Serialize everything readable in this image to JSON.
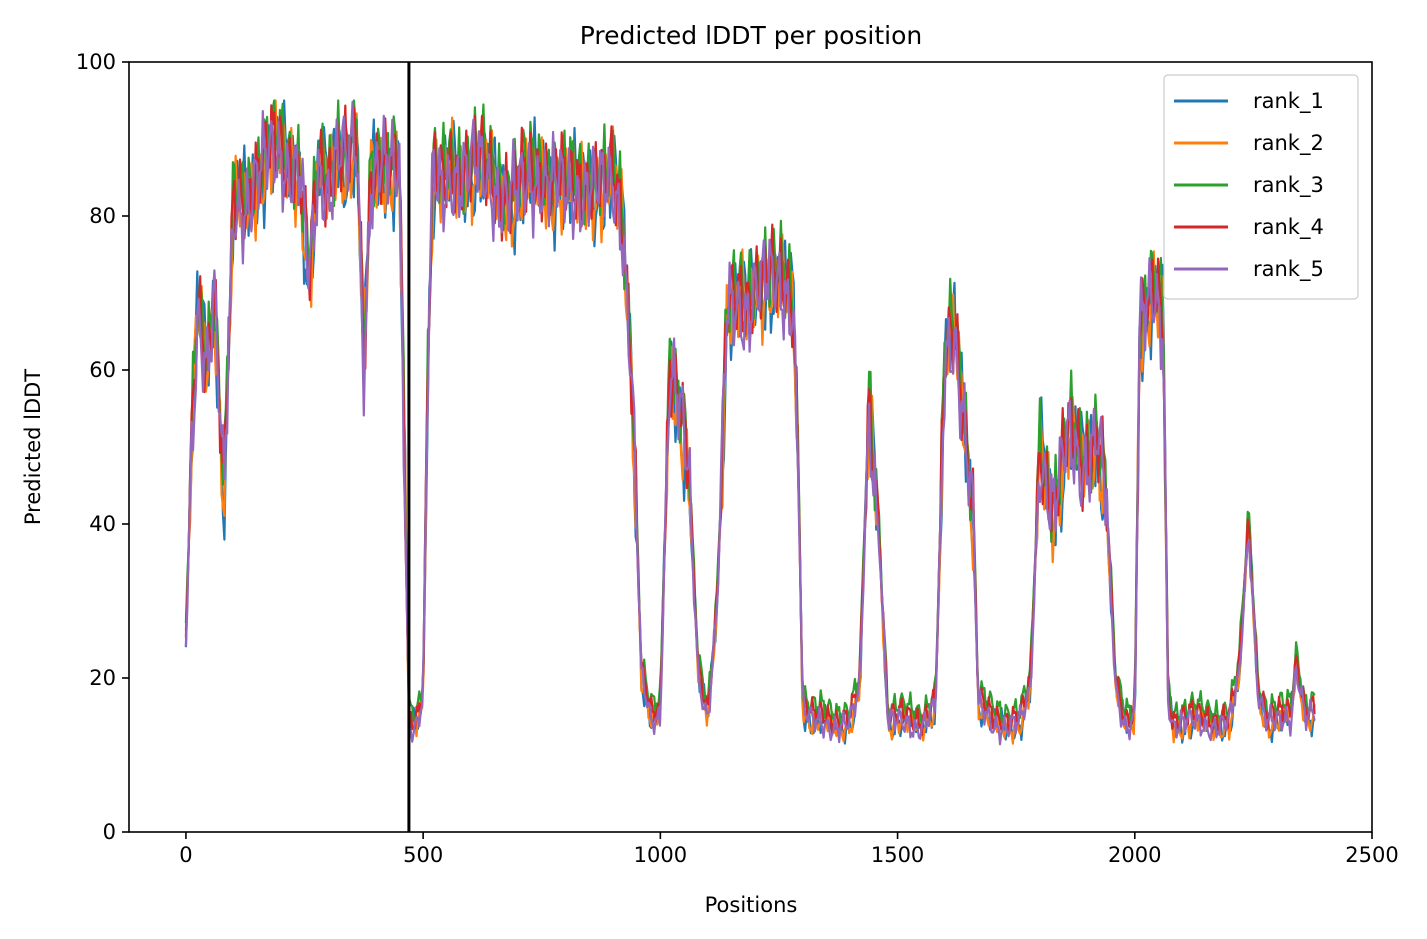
{
  "chart_data": {
    "type": "line",
    "title": "Predicted lDDT per position",
    "xlabel": "Positions",
    "ylabel": "Predicted lDDT",
    "xlim": [
      -120,
      2500
    ],
    "ylim": [
      0,
      100
    ],
    "xticks": [
      0,
      500,
      1000,
      1500,
      2000,
      2500
    ],
    "yticks": [
      0,
      20,
      40,
      60,
      80,
      100
    ],
    "legend_position": "top-right",
    "grid": false,
    "chain_break_x": 470,
    "chain_break_color": "#000000",
    "series": [
      {
        "name": "rank_1",
        "color": "#1f77b4",
        "offset": 0,
        "phase": 0.0
      },
      {
        "name": "rank_2",
        "color": "#ff7f0e",
        "offset": 0,
        "phase": 1.1
      },
      {
        "name": "rank_3",
        "color": "#2ca02c",
        "offset": 2,
        "phase": 2.3
      },
      {
        "name": "rank_4",
        "color": "#d62728",
        "offset": 1,
        "phase": 3.1
      },
      {
        "name": "rank_5",
        "color": "#9467bd",
        "offset": 0,
        "phase": 4.2
      }
    ],
    "profile": {
      "x": [
        0,
        10,
        25,
        45,
        60,
        80,
        100,
        150,
        200,
        240,
        260,
        280,
        300,
        320,
        340,
        360,
        375,
        390,
        410,
        430,
        450,
        460,
        470,
        480,
        490,
        500,
        510,
        520,
        540,
        560,
        600,
        650,
        700,
        750,
        800,
        850,
        880,
        900,
        920,
        940,
        960,
        980,
        1000,
        1010,
        1020,
        1040,
        1060,
        1080,
        1100,
        1120,
        1140,
        1180,
        1200,
        1240,
        1280,
        1290,
        1300,
        1320,
        1350,
        1400,
        1420,
        1440,
        1460,
        1480,
        1550,
        1580,
        1600,
        1620,
        1640,
        1660,
        1670,
        1700,
        1740,
        1760,
        1780,
        1800,
        1830,
        1860,
        1890,
        1920,
        1940,
        1960,
        1980,
        2000,
        2010,
        2040,
        2060,
        2070,
        2080,
        2100,
        2150,
        2200,
        2220,
        2240,
        2260,
        2280,
        2300,
        2330,
        2340,
        2360,
        2380
      ],
      "y": [
        24,
        45,
        68,
        62,
        70,
        42,
        80,
        85,
        88,
        86,
        70,
        85,
        84,
        90,
        86,
        88,
        60,
        86,
        88,
        85,
        84,
        50,
        14,
        14,
        15,
        18,
        60,
        84,
        82,
        86,
        86,
        84,
        82,
        86,
        82,
        85,
        82,
        84,
        80,
        60,
        20,
        14,
        15,
        40,
        62,
        55,
        45,
        20,
        15,
        30,
        66,
        68,
        72,
        70,
        70,
        50,
        16,
        14,
        14,
        14,
        18,
        55,
        40,
        14,
        14,
        16,
        60,
        65,
        55,
        40,
        16,
        14,
        14,
        14,
        18,
        50,
        42,
        50,
        48,
        52,
        42,
        18,
        14,
        15,
        65,
        68,
        66,
        18,
        14,
        14,
        14,
        14,
        20,
        40,
        18,
        14,
        14,
        15,
        22,
        15,
        15
      ]
    }
  }
}
